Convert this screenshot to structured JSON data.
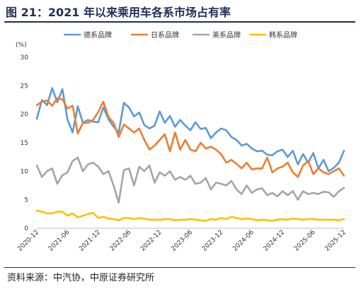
{
  "header": {
    "title": "图 21：2021 年以来乘用车各系市场占有率"
  },
  "footer": {
    "source": "资料来源：中汽协，中原证券研究所"
  },
  "chart_data": {
    "type": "line",
    "unit": "(%)",
    "ylim": [
      0,
      30
    ],
    "yticks": [
      0,
      5,
      10,
      15,
      20,
      25,
      30
    ],
    "x_tick_labels": [
      "2020-12",
      "2021-06",
      "2021-12",
      "2022-06",
      "2022-12",
      "2023-06",
      "2023-12",
      "2024-06",
      "2024-12",
      "2025-06",
      "2025-12"
    ],
    "x_tick_index": [
      0,
      6,
      12,
      18,
      24,
      30,
      36,
      42,
      48,
      54,
      60
    ],
    "x_count": 61,
    "grid": false,
    "legend_position": "top",
    "series": [
      {
        "name": "德系品牌",
        "color": "#5b9bd5",
        "values": [
          19.2,
          22.5,
          21.6,
          24.6,
          22.1,
          24.4,
          19.0,
          16.8,
          21.4,
          18.5,
          19.0,
          18.7,
          18.6,
          21.2,
          19.1,
          17.8,
          16.8,
          22.0,
          21.2,
          19.6,
          20.3,
          18.1,
          17.5,
          18.0,
          20.5,
          18.5,
          19.7,
          17.8,
          19.0,
          18.0,
          17.2,
          18.6,
          17.4,
          17.6,
          15.8,
          16.8,
          17.5,
          17.2,
          16.0,
          15.5,
          14.5,
          14.8,
          14.0,
          13.5,
          13.6,
          12.9,
          12.8,
          13.5,
          13.8,
          12.5,
          13.6,
          11.2,
          13.0,
          11.5,
          13.2,
          10.5,
          12.0,
          10.0,
          10.6,
          11.5,
          13.6
        ]
      },
      {
        "name": "日系品牌",
        "color": "#ed7d31",
        "values": [
          21.6,
          22.2,
          22.4,
          21.5,
          22.8,
          22.6,
          21.0,
          21.5,
          16.6,
          18.5,
          18.5,
          19.0,
          20.4,
          22.2,
          19.5,
          18.5,
          16.0,
          18.2,
          17.5,
          16.8,
          17.5,
          15.5,
          13.8,
          14.5,
          15.5,
          16.5,
          13.5,
          16.8,
          13.8,
          15.5,
          13.8,
          13.5,
          15.0,
          14.0,
          14.3,
          13.8,
          13.0,
          11.5,
          12.0,
          11.3,
          10.5,
          11.5,
          10.3,
          10.5,
          10.5,
          12.4,
          9.8,
          10.5,
          10.8,
          11.5,
          9.8,
          9.0,
          11.0,
          11.8,
          9.5,
          10.5,
          9.8,
          9.5,
          10.0,
          10.5,
          9.2
        ]
      },
      {
        "name": "美系品牌",
        "color": "#a5a5a5",
        "values": [
          11.0,
          9.0,
          10.0,
          10.5,
          7.8,
          9.3,
          9.8,
          11.8,
          12.4,
          10.0,
          11.2,
          11.5,
          10.8,
          9.5,
          10.0,
          7.5,
          4.5,
          10.2,
          10.5,
          7.5,
          10.8,
          10.0,
          11.0,
          8.0,
          9.8,
          9.2,
          10.0,
          8.5,
          9.0,
          8.5,
          9.2,
          7.8,
          8.0,
          8.8,
          6.8,
          8.0,
          7.8,
          7.5,
          8.3,
          6.8,
          6.0,
          7.5,
          6.2,
          6.8,
          7.0,
          5.8,
          6.2,
          5.6,
          6.5,
          5.8,
          6.5,
          5.0,
          6.5,
          6.0,
          6.2,
          6.0,
          6.4,
          6.3,
          5.5,
          6.5,
          7.1
        ]
      },
      {
        "name": "韩系品牌",
        "color": "#ffc000",
        "values": [
          3.1,
          2.9,
          2.6,
          2.6,
          2.9,
          2.9,
          2.2,
          2.6,
          1.9,
          2.2,
          2.5,
          2.7,
          1.8,
          2.0,
          1.7,
          1.6,
          1.4,
          1.8,
          1.8,
          1.6,
          1.8,
          1.7,
          1.5,
          1.5,
          1.5,
          1.6,
          1.6,
          1.4,
          1.5,
          1.5,
          1.6,
          1.5,
          1.4,
          1.3,
          1.6,
          1.5,
          1.8,
          1.6,
          2.0,
          1.8,
          1.6,
          1.7,
          1.6,
          1.4,
          1.5,
          1.4,
          1.3,
          1.5,
          1.6,
          1.5,
          1.7,
          1.6,
          1.5,
          1.6,
          1.6,
          1.5,
          1.5,
          1.5,
          1.5,
          1.4,
          1.6
        ]
      }
    ]
  }
}
